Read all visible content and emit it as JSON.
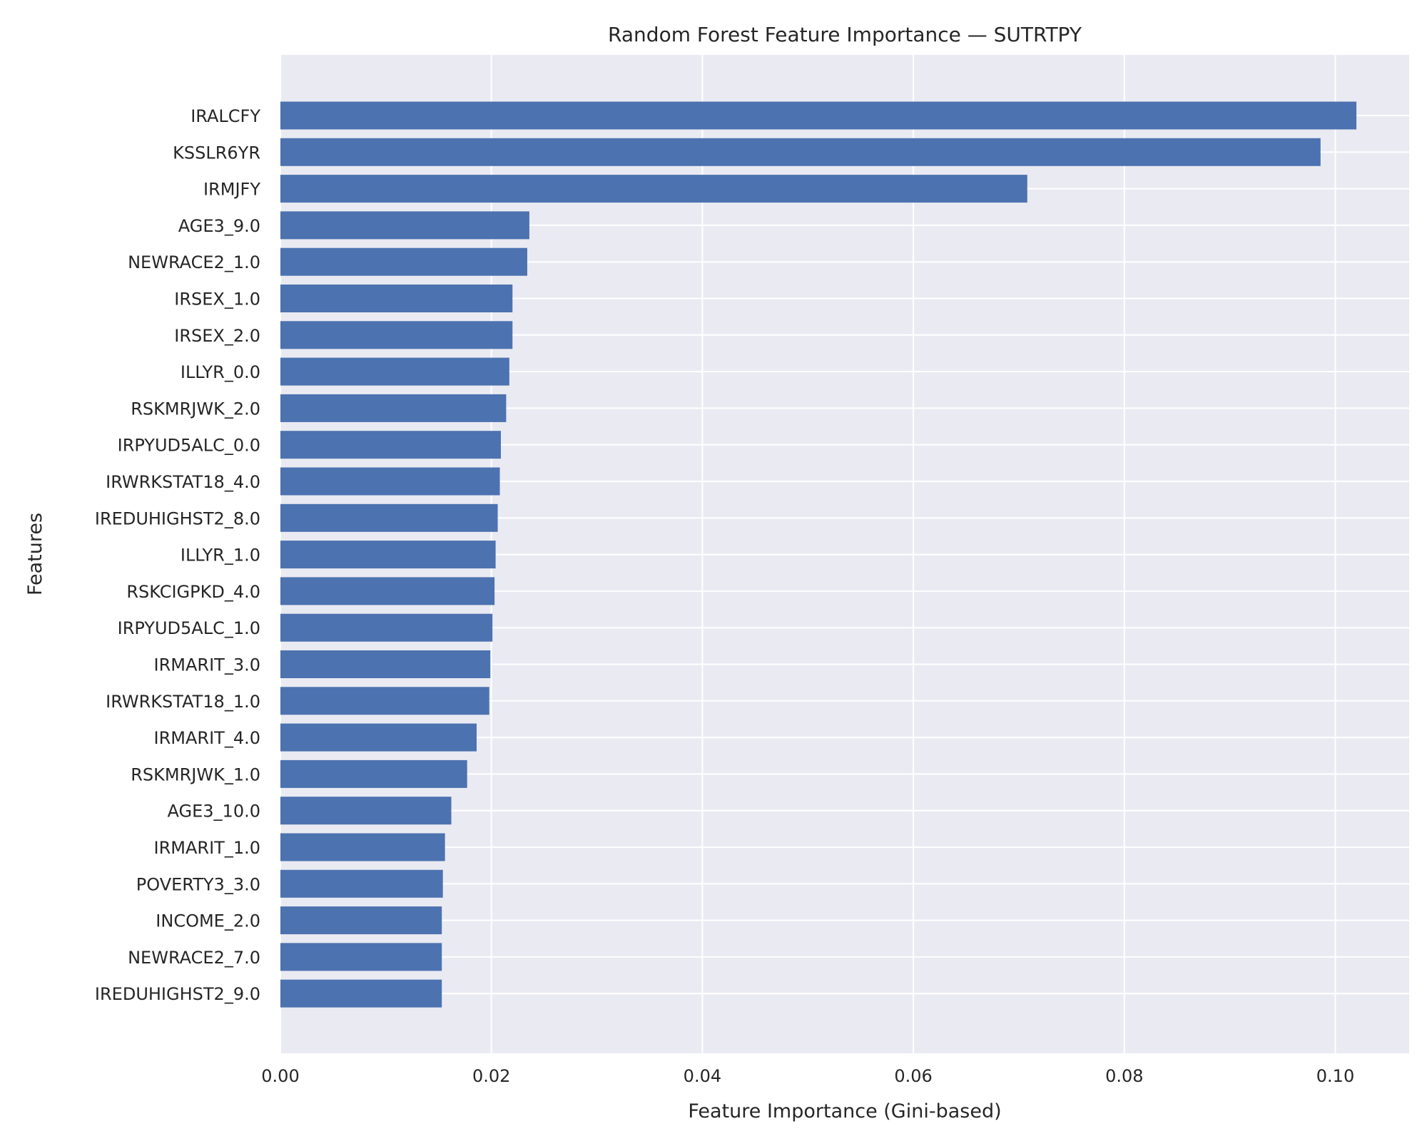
{
  "chart_data": {
    "type": "bar",
    "orientation": "horizontal",
    "title": "Random Forest Feature Importance — SUTRTPY",
    "xlabel": "Feature Importance (Gini-based)",
    "ylabel": "Features",
    "xlim": [
      0,
      0.107
    ],
    "xticks": [
      0.0,
      0.02,
      0.04,
      0.06,
      0.08,
      0.1
    ],
    "xtick_labels": [
      "0.00",
      "0.02",
      "0.04",
      "0.06",
      "0.08",
      "0.10"
    ],
    "grid": true,
    "colors": {
      "bar": "#4c72b0",
      "plot_bg": "#eaeaf2",
      "grid": "#ffffff",
      "text": "#262626"
    },
    "categories": [
      "IRALCFY",
      "KSSLR6YR",
      "IRMJFY",
      "AGE3_9.0",
      "NEWRACE2_1.0",
      "IRSEX_1.0",
      "IRSEX_2.0",
      "ILLYR_0.0",
      "RSKMRJWK_2.0",
      "IRPYUD5ALC_0.0",
      "IRWRKSTAT18_4.0",
      "IREDUHIGHST2_8.0",
      "ILLYR_1.0",
      "RSKCIGPKD_4.0",
      "IRPYUD5ALC_1.0",
      "IRMARIT_3.0",
      "IRWRKSTAT18_1.0",
      "IRMARIT_4.0",
      "RSKMRJWK_1.0",
      "AGE3_10.0",
      "IRMARIT_1.0",
      "POVERTY3_3.0",
      "INCOME_2.0",
      "NEWRACE2_7.0",
      "IREDUHIGHST2_9.0"
    ],
    "values": [
      0.102,
      0.0986,
      0.0708,
      0.0236,
      0.0234,
      0.022,
      0.022,
      0.0217,
      0.0214,
      0.0209,
      0.0208,
      0.0206,
      0.0204,
      0.0203,
      0.0201,
      0.0199,
      0.0198,
      0.0186,
      0.0177,
      0.0162,
      0.0156,
      0.0154,
      0.0153,
      0.0153,
      0.0153
    ]
  }
}
